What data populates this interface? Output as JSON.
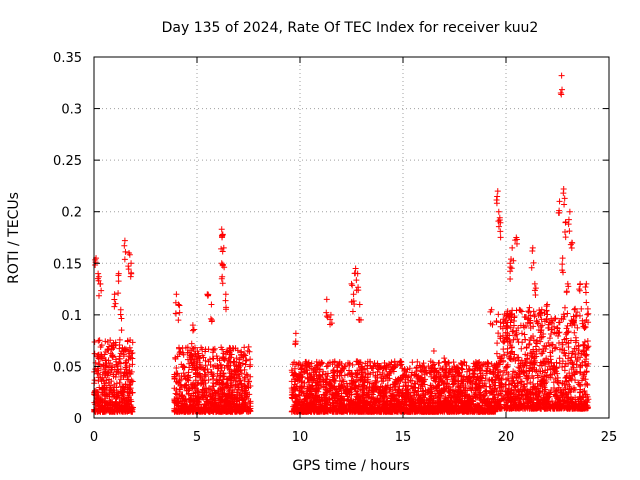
{
  "chart_data": {
    "type": "scatter",
    "title": "Day 135 of 2024, Rate Of TEC Index for receiver kuu2",
    "xlabel": "GPS time / hours",
    "ylabel": "ROTI / TECUs",
    "xlim": [
      0,
      25
    ],
    "ylim": [
      0,
      0.35
    ],
    "xticks": [
      "0",
      "5",
      "10",
      "15",
      "20",
      "25"
    ],
    "yticks": [
      "0",
      "0.05",
      "0.1",
      "0.15",
      "0.2",
      "0.25",
      "0.3",
      "0.35"
    ],
    "grid": true,
    "marker": "plus",
    "color": "#ff0000",
    "series": [
      {
        "segments": [
          {
            "x_range": [
              0.0,
              1.9
            ],
            "base": 0.02,
            "spread": 0.05
          },
          {
            "x_range": [
              3.9,
              7.6
            ],
            "base": 0.02,
            "spread": 0.045
          },
          {
            "x_range": [
              9.6,
              19.5
            ],
            "base": 0.02,
            "spread": 0.035
          },
          {
            "x_range": [
              19.5,
              24.0
            ],
            "base": 0.03,
            "spread": 0.07
          }
        ],
        "peaks": [
          {
            "x": 0.1,
            "y": 0.155
          },
          {
            "x": 0.2,
            "y": 0.14
          },
          {
            "x": 0.3,
            "y": 0.13
          },
          {
            "x": 1.2,
            "y": 0.14
          },
          {
            "x": 1.5,
            "y": 0.172
          },
          {
            "x": 1.7,
            "y": 0.16
          },
          {
            "x": 1.8,
            "y": 0.15
          },
          {
            "x": 1.0,
            "y": 0.12
          },
          {
            "x": 1.3,
            "y": 0.105
          },
          {
            "x": 4.0,
            "y": 0.12
          },
          {
            "x": 4.1,
            "y": 0.11
          },
          {
            "x": 4.8,
            "y": 0.09
          },
          {
            "x": 5.5,
            "y": 0.12
          },
          {
            "x": 5.7,
            "y": 0.11
          },
          {
            "x": 6.2,
            "y": 0.183
          },
          {
            "x": 6.25,
            "y": 0.178
          },
          {
            "x": 6.3,
            "y": 0.165
          },
          {
            "x": 6.2,
            "y": 0.15
          },
          {
            "x": 6.4,
            "y": 0.12
          },
          {
            "x": 9.8,
            "y": 0.082
          },
          {
            "x": 11.3,
            "y": 0.115
          },
          {
            "x": 11.5,
            "y": 0.1
          },
          {
            "x": 12.5,
            "y": 0.13
          },
          {
            "x": 12.7,
            "y": 0.145
          },
          {
            "x": 12.8,
            "y": 0.14
          },
          {
            "x": 12.6,
            "y": 0.12
          },
          {
            "x": 12.9,
            "y": 0.11
          },
          {
            "x": 16.5,
            "y": 0.065
          },
          {
            "x": 17.0,
            "y": 0.058
          },
          {
            "x": 19.3,
            "y": 0.105
          },
          {
            "x": 19.6,
            "y": 0.22
          },
          {
            "x": 19.65,
            "y": 0.2
          },
          {
            "x": 19.7,
            "y": 0.192
          },
          {
            "x": 20.2,
            "y": 0.15
          },
          {
            "x": 20.3,
            "y": 0.165
          },
          {
            "x": 20.5,
            "y": 0.175
          },
          {
            "x": 21.3,
            "y": 0.165
          },
          {
            "x": 21.4,
            "y": 0.13
          },
          {
            "x": 22.0,
            "y": 0.11
          },
          {
            "x": 22.6,
            "y": 0.21
          },
          {
            "x": 22.7,
            "y": 0.332
          },
          {
            "x": 22.8,
            "y": 0.222
          },
          {
            "x": 22.9,
            "y": 0.19
          },
          {
            "x": 22.75,
            "y": 0.155
          },
          {
            "x": 23.1,
            "y": 0.2
          },
          {
            "x": 23.2,
            "y": 0.17
          },
          {
            "x": 23.0,
            "y": 0.13
          },
          {
            "x": 23.6,
            "y": 0.13
          },
          {
            "x": 23.9,
            "y": 0.13
          },
          {
            "x": 23.3,
            "y": 0.095
          }
        ]
      }
    ]
  }
}
